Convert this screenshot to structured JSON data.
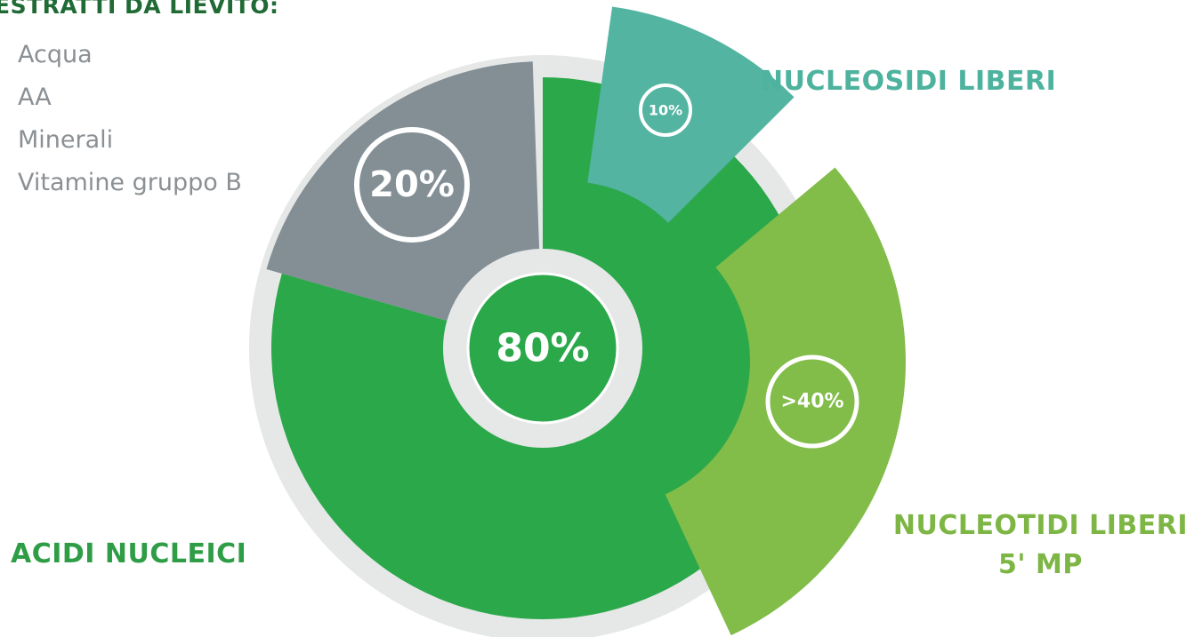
{
  "title": "ESTRATTI DA LIEVITO:",
  "components": [
    "Acqua",
    "AA",
    "Minerali",
    "Vitamine gruppo B"
  ],
  "chart_data": {
    "type": "pie",
    "slices": [
      {
        "label": "",
        "value": 20,
        "display": "20%",
        "color": "#838f95"
      },
      {
        "label": "ACIDI NUCLEICI",
        "value": 80,
        "display": "80%",
        "color": "#2ba84a"
      }
    ],
    "sub_slices": [
      {
        "label": "NUCLEOSIDI LIBERI",
        "value": 10,
        "display": "10%",
        "color": "#52b4a1"
      },
      {
        "label": "NUCLEOTIDI LIBERI",
        "label_line2": "5' MP",
        "value": 40,
        "display": ">40%",
        "color": "#82bc49"
      }
    ]
  },
  "colors": {
    "ring": "#e6e8e7",
    "title": "#1f6a35",
    "list_text": "#8b9094"
  }
}
